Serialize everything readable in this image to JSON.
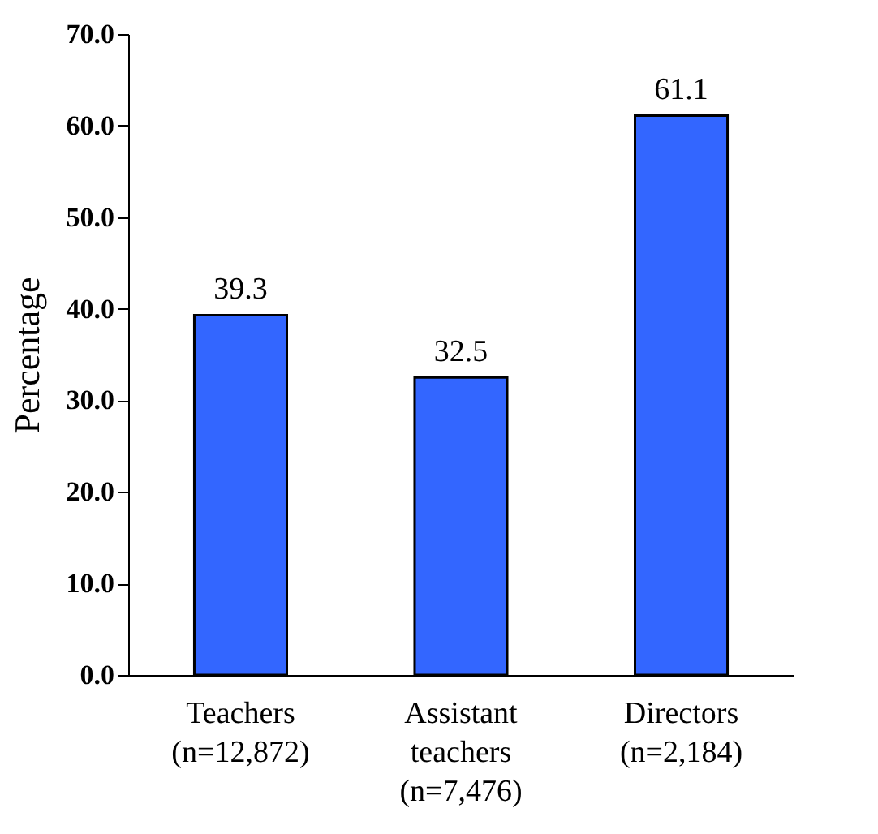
{
  "chart_data": {
    "type": "bar",
    "ylabel": "Percentage",
    "categories": [
      "Teachers\n(n=12,872)",
      "Assistant\nteachers\n(n=7,476)",
      "Directors\n(n=2,184)"
    ],
    "values": [
      39.3,
      32.5,
      61.1
    ],
    "color": "#3366ff",
    "ylim": [
      0,
      70
    ],
    "yticks": [
      {
        "value": 0,
        "label": "0.0"
      },
      {
        "value": 10,
        "label": "10.0"
      },
      {
        "value": 20,
        "label": "20.0"
      },
      {
        "value": 30,
        "label": "30.0"
      },
      {
        "value": 40,
        "label": "40.0"
      },
      {
        "value": 50,
        "label": "50.0"
      },
      {
        "value": 60,
        "label": "60.0"
      },
      {
        "value": 70,
        "label": "70.0"
      }
    ],
    "data_labels": true,
    "grid": false
  }
}
